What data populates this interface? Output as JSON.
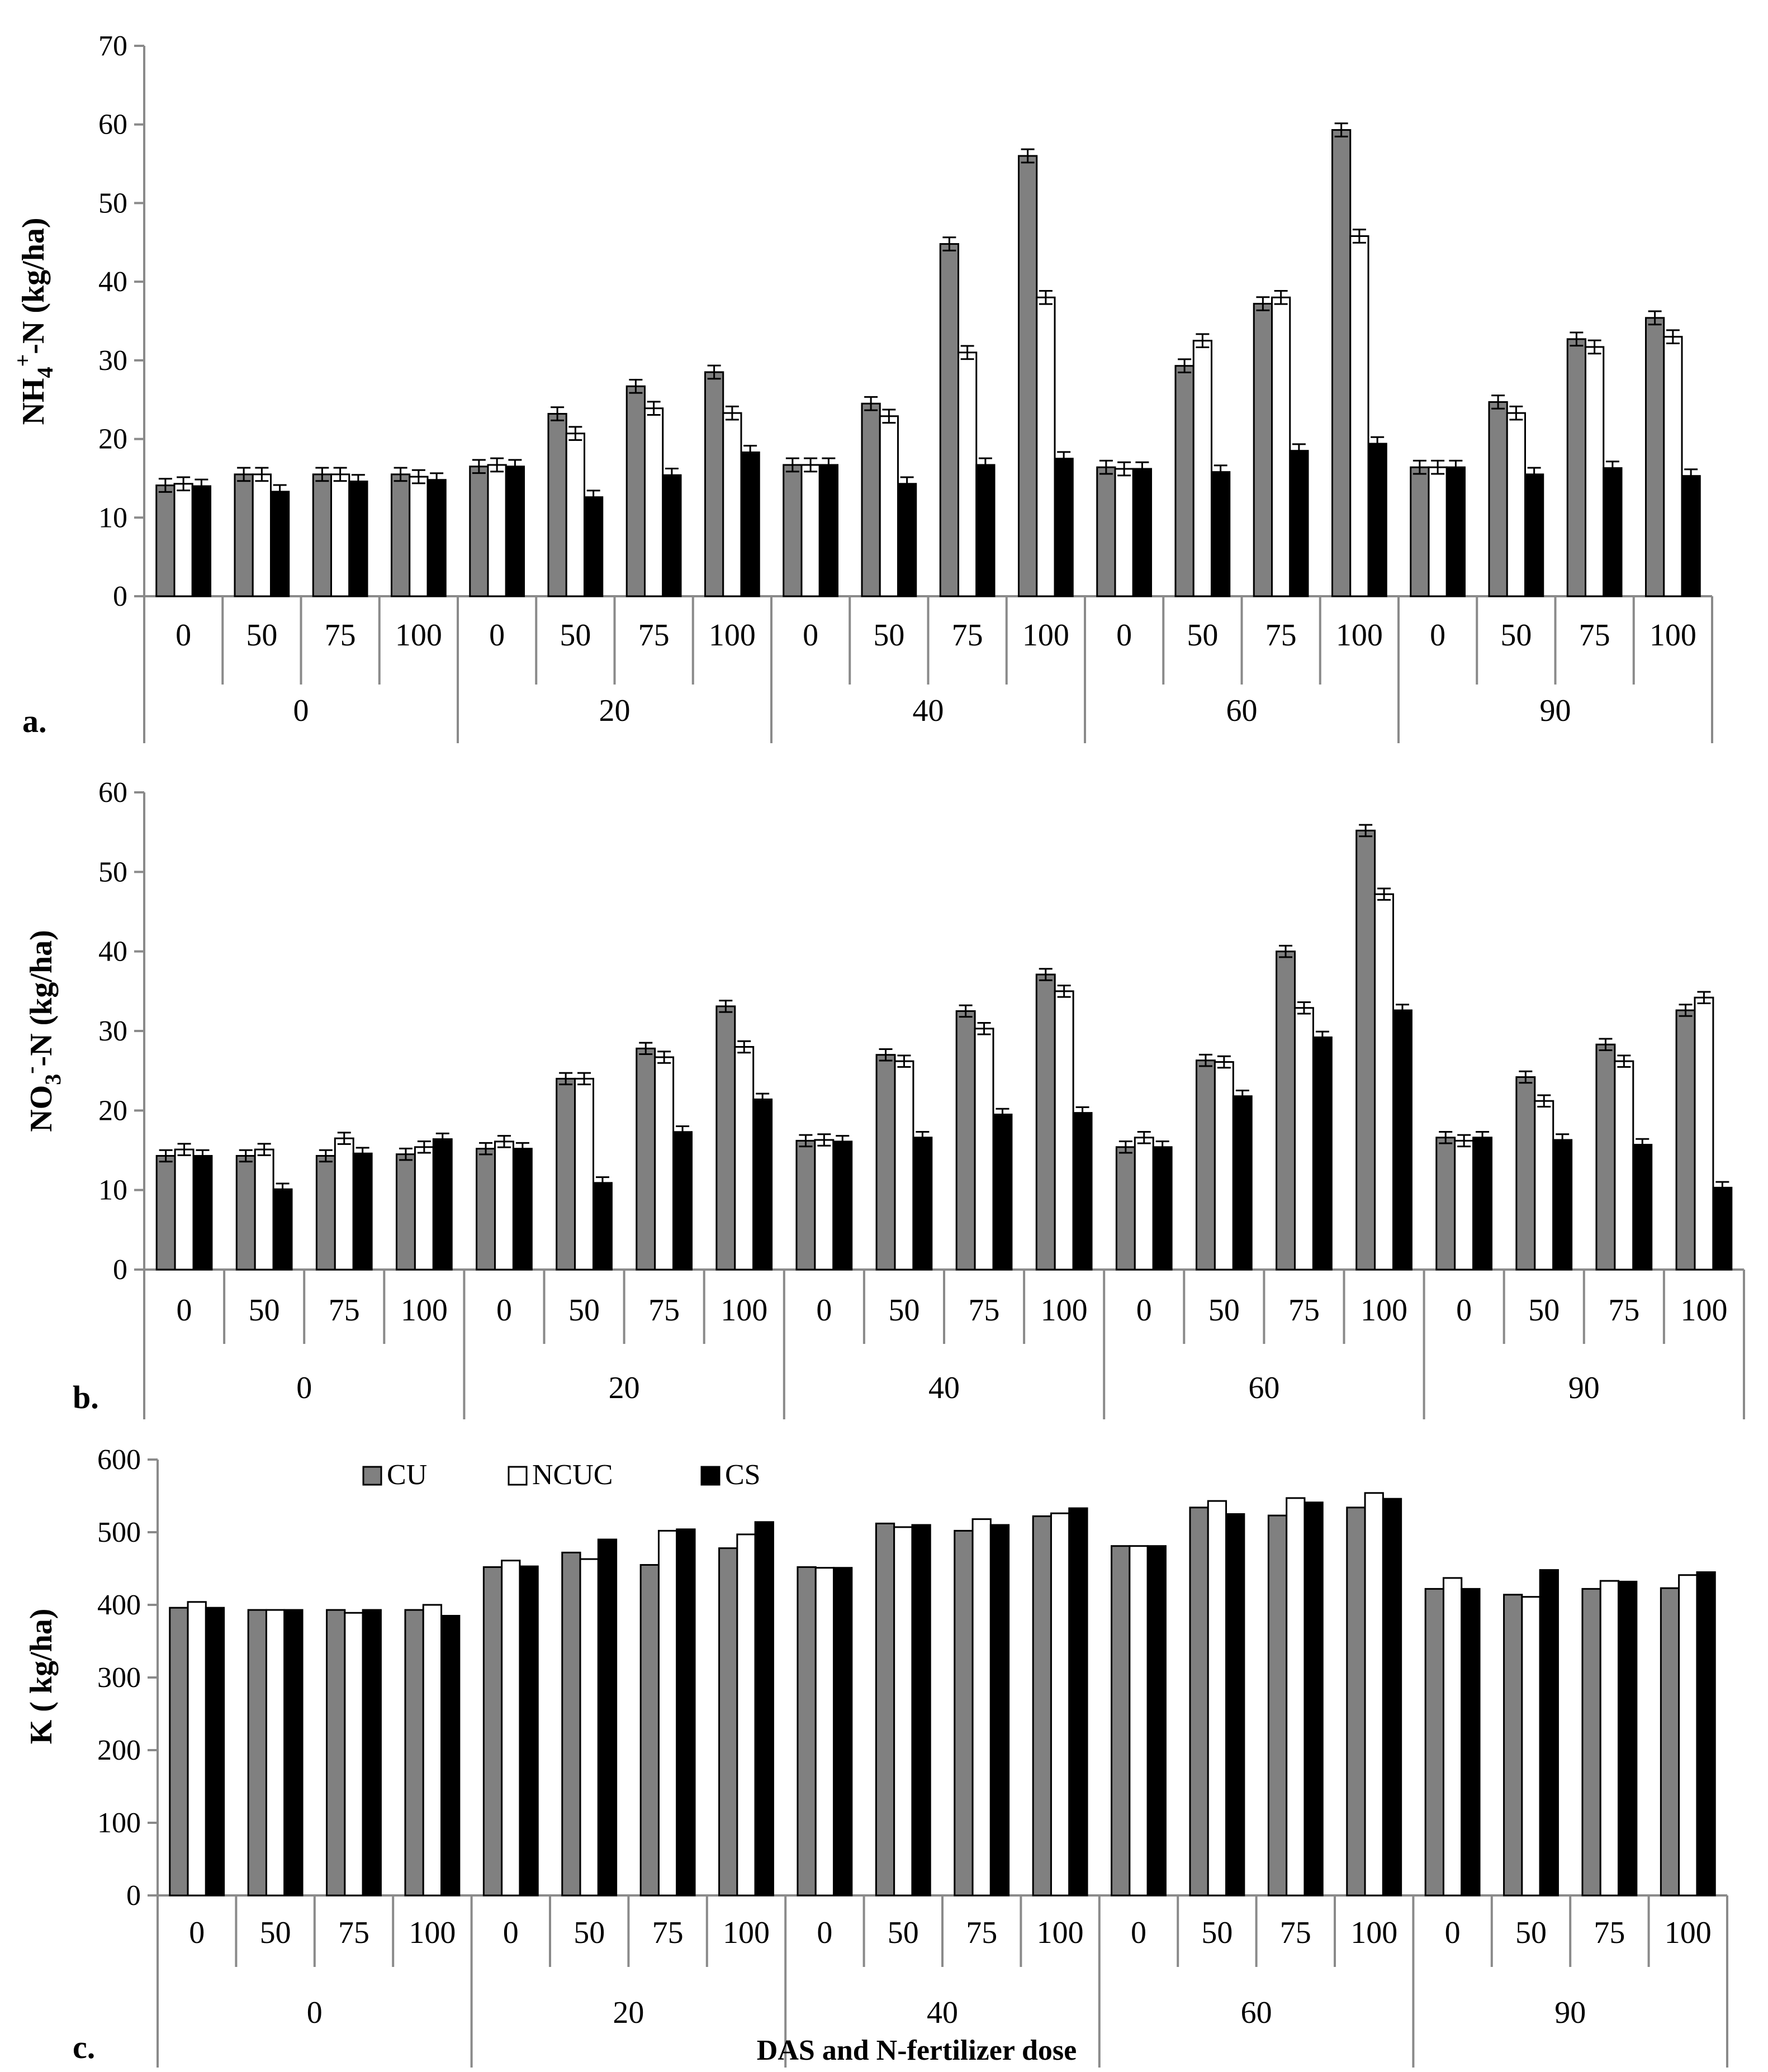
{
  "figure": {
    "xlabel": "DAS and N-fertilizer dose",
    "legend": [
      {
        "name": "CU",
        "color": "#808080"
      },
      {
        "name": "NCUC",
        "color": "#ffffff"
      },
      {
        "name": "CS",
        "color": "#000000"
      }
    ]
  },
  "chart_data": [
    {
      "type": "bar",
      "panel_label": "a.",
      "ylabel_main": "NH",
      "ylabel_sub": "4",
      "ylabel_sup": "+",
      "ylabel_rest": "-N (kg/ha)",
      "ylim": [
        0,
        70
      ],
      "yticks": [
        "0",
        "10",
        "20",
        "30",
        "40",
        "50",
        "60",
        "70"
      ],
      "doses": [
        "0",
        "50",
        "75",
        "100"
      ],
      "das": [
        "0",
        "20",
        "40",
        "60",
        "90"
      ],
      "error_bars": true,
      "series": [
        {
          "name": "CU",
          "values": [
            14.1,
            15.5,
            15.5,
            15.5,
            16.5,
            23.2,
            26.7,
            28.5,
            16.7,
            24.5,
            44.8,
            56.0,
            16.4,
            29.3,
            37.2,
            59.3,
            16.4,
            24.7,
            32.7,
            35.4
          ]
        },
        {
          "name": "NCUC",
          "values": [
            14.3,
            15.5,
            15.5,
            15.2,
            16.7,
            20.7,
            23.9,
            23.3,
            16.7,
            22.9,
            31.0,
            38.0,
            16.2,
            32.5,
            38.0,
            45.8,
            16.4,
            23.3,
            31.7,
            33.0
          ]
        },
        {
          "name": "CS",
          "values": [
            14.0,
            13.3,
            14.6,
            14.8,
            16.5,
            12.6,
            15.4,
            18.3,
            16.7,
            14.3,
            16.7,
            17.5,
            16.2,
            15.8,
            18.5,
            19.4,
            16.4,
            15.5,
            16.3,
            15.3
          ]
        }
      ]
    },
    {
      "type": "bar",
      "panel_label": "b.",
      "ylabel_main": "NO",
      "ylabel_sub": "3",
      "ylabel_sup": "-",
      "ylabel_rest": "-N (kg/ha)",
      "ylim": [
        0,
        60
      ],
      "yticks": [
        "0",
        "10",
        "20",
        "30",
        "40",
        "50",
        "60"
      ],
      "doses": [
        "0",
        "50",
        "75",
        "100"
      ],
      "das": [
        "0",
        "20",
        "40",
        "60",
        "90"
      ],
      "error_bars": true,
      "series": [
        {
          "name": "CU",
          "values": [
            14.3,
            14.3,
            14.3,
            14.5,
            15.2,
            24.0,
            27.8,
            33.1,
            16.2,
            27.0,
            32.5,
            37.1,
            15.4,
            26.3,
            40.0,
            55.2,
            16.6,
            24.2,
            28.3,
            32.6
          ]
        },
        {
          "name": "NCUC",
          "values": [
            15.1,
            15.1,
            16.5,
            15.4,
            16.1,
            24.0,
            26.7,
            28.0,
            16.3,
            26.2,
            30.3,
            35.0,
            16.6,
            26.1,
            32.9,
            47.2,
            16.2,
            21.2,
            26.2,
            34.2
          ]
        },
        {
          "name": "CS",
          "values": [
            14.3,
            10.1,
            14.6,
            16.4,
            15.2,
            10.9,
            17.3,
            21.4,
            16.1,
            16.6,
            19.5,
            19.7,
            15.4,
            21.8,
            29.2,
            32.6,
            16.6,
            16.3,
            15.7,
            10.3
          ]
        }
      ]
    },
    {
      "type": "bar",
      "panel_label": "c.",
      "ylabel_main": "K ( kg/ha)",
      "ylim": [
        0,
        600
      ],
      "yticks": [
        "0",
        "100",
        "200",
        "300",
        "400",
        "500",
        "600"
      ],
      "doses": [
        "0",
        "50",
        "75",
        "100"
      ],
      "das": [
        "0",
        "20",
        "40",
        "60",
        "90"
      ],
      "error_bars": false,
      "series": [
        {
          "name": "CU",
          "values": [
            396,
            393,
            393,
            393,
            452,
            472,
            455,
            478,
            452,
            512,
            502,
            522,
            481,
            534,
            523,
            534,
            422,
            414,
            422,
            423
          ]
        },
        {
          "name": "NCUC",
          "values": [
            404,
            393,
            389,
            400,
            461,
            463,
            502,
            497,
            451,
            507,
            518,
            526,
            481,
            543,
            547,
            554,
            437,
            411,
            433,
            441
          ]
        },
        {
          "name": "CS",
          "values": [
            396,
            393,
            393,
            385,
            453,
            490,
            504,
            514,
            451,
            510,
            510,
            533,
            481,
            525,
            541,
            546,
            422,
            448,
            432,
            445
          ]
        }
      ]
    }
  ]
}
